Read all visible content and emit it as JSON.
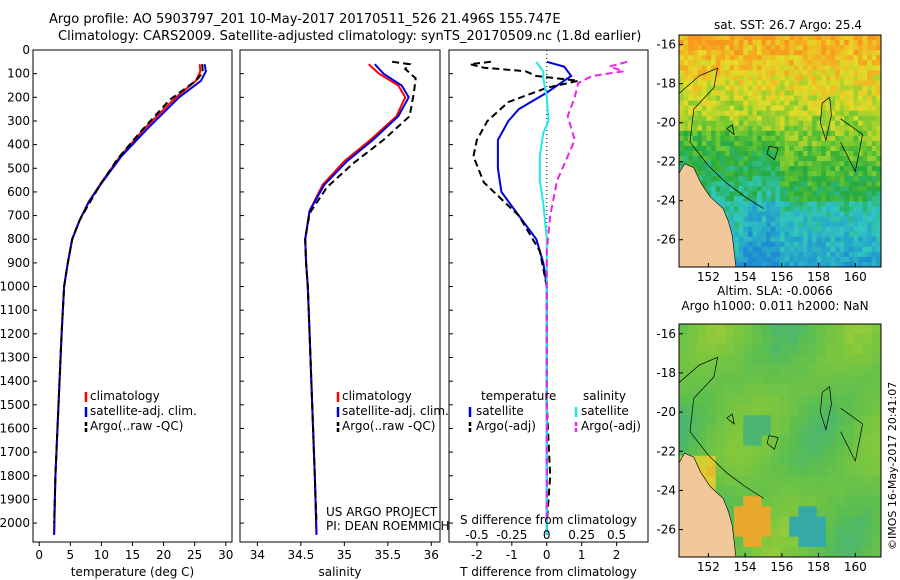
{
  "header": {
    "line1": "Argo profile: AO 5903797_201 10-May-2017 20170511_526 21.496S 155.747E",
    "line2": "Climatology: CARS2009. Satellite-adjusted climatology: synTS_20170509.nc (1.8d earlier)"
  },
  "timestamp": "©IMOS 16-May-2017 20:41:07",
  "colors": {
    "climatology": "#ff0000",
    "satellite": "#0000dd",
    "argo": "#000000",
    "sal_satellite": "#22e8e8",
    "sal_argo": "#ee22ee",
    "land": "#f2c79a"
  },
  "chart_data": [
    {
      "type": "line",
      "name": "temperature",
      "xlabel": "temperature (deg C)",
      "xlim": [
        -1,
        31
      ],
      "xticks": [
        0,
        5,
        10,
        15,
        20,
        25,
        30
      ],
      "ylim": [
        2080,
        0
      ],
      "yticks": [
        0,
        100,
        200,
        300,
        400,
        500,
        600,
        700,
        800,
        900,
        1000,
        1100,
        1200,
        1300,
        1400,
        1500,
        1600,
        1700,
        1800,
        1900,
        2000
      ],
      "legend": [
        "climatology",
        "satellite-adj. clim.",
        "Argo(..raw -QC)"
      ],
      "series": [
        {
          "name": "climatology",
          "color": "#ff0000",
          "dash": "",
          "points": [
            [
              25.8,
              60
            ],
            [
              25.9,
              90
            ],
            [
              25.2,
              130
            ],
            [
              22,
              200
            ],
            [
              17,
              330
            ],
            [
              13,
              450
            ],
            [
              10,
              560
            ],
            [
              8,
              640
            ],
            [
              6.5,
              720
            ],
            [
              5.3,
              800
            ],
            [
              4.6,
              900
            ],
            [
              4,
              1000
            ],
            [
              3.6,
              1200
            ],
            [
              3.1,
              1500
            ],
            [
              2.6,
              1800
            ],
            [
              2.4,
              2050
            ]
          ]
        },
        {
          "name": "satellite-adj. clim.",
          "color": "#0000dd",
          "dash": "",
          "points": [
            [
              26.6,
              60
            ],
            [
              26.8,
              90
            ],
            [
              26,
              130
            ],
            [
              22.5,
              200
            ],
            [
              17.5,
              330
            ],
            [
              13.2,
              450
            ],
            [
              10.1,
              560
            ],
            [
              8,
              640
            ],
            [
              6.5,
              720
            ],
            [
              5.3,
              800
            ],
            [
              4.6,
              900
            ],
            [
              4,
              1000
            ],
            [
              3.6,
              1200
            ],
            [
              3.1,
              1500
            ],
            [
              2.6,
              1800
            ],
            [
              2.4,
              2050
            ]
          ]
        },
        {
          "name": "Argo(..raw -QC)",
          "color": "#000000",
          "dash": "7,4",
          "points": [
            [
              26.2,
              60
            ],
            [
              26.3,
              95
            ],
            [
              25.2,
              130
            ],
            [
              21,
              210
            ],
            [
              16.5,
              340
            ],
            [
              12.6,
              460
            ],
            [
              9.8,
              570
            ],
            [
              8,
              650
            ],
            [
              6.5,
              720
            ],
            [
              5.3,
              800
            ],
            [
              4.6,
              900
            ],
            [
              4,
              1000
            ],
            [
              3.6,
              1200
            ],
            [
              3.1,
              1500
            ],
            [
              2.6,
              1800
            ],
            [
              2.4,
              2000
            ]
          ]
        }
      ]
    },
    {
      "type": "line",
      "name": "salinity",
      "xlabel": "salinity",
      "xlim": [
        33.8,
        36.1
      ],
      "xticks": [
        34,
        34.5,
        35,
        35.5,
        36
      ],
      "ylim": [
        2080,
        0
      ],
      "legend": [
        "climatology",
        "satellite-adj. clim.",
        "Argo(..raw -QC)"
      ],
      "annotation": [
        "US ARGO PROJECT",
        "PI: DEAN ROEMMICH"
      ],
      "series": [
        {
          "name": "climatology",
          "color": "#ff0000",
          "dash": "",
          "points": [
            [
              35.28,
              60
            ],
            [
              35.4,
              100
            ],
            [
              35.62,
              150
            ],
            [
              35.7,
              200
            ],
            [
              35.6,
              280
            ],
            [
              35.3,
              380
            ],
            [
              35,
              470
            ],
            [
              34.75,
              570
            ],
            [
              34.6,
              680
            ],
            [
              34.55,
              800
            ],
            [
              34.56,
              900
            ],
            [
              34.58,
              1000
            ],
            [
              34.6,
              1200
            ],
            [
              34.63,
              1500
            ],
            [
              34.66,
              1800
            ],
            [
              34.68,
              2050
            ]
          ]
        },
        {
          "name": "satellite-adj. clim.",
          "color": "#0000dd",
          "dash": "",
          "points": [
            [
              35.35,
              60
            ],
            [
              35.45,
              100
            ],
            [
              35.66,
              150
            ],
            [
              35.74,
              200
            ],
            [
              35.62,
              280
            ],
            [
              35.33,
              380
            ],
            [
              35.03,
              470
            ],
            [
              34.77,
              570
            ],
            [
              34.6,
              680
            ],
            [
              34.55,
              800
            ],
            [
              34.56,
              900
            ],
            [
              34.58,
              1000
            ],
            [
              34.6,
              1200
            ],
            [
              34.63,
              1500
            ],
            [
              34.66,
              1800
            ],
            [
              34.68,
              2050
            ]
          ]
        },
        {
          "name": "Argo(..raw -QC)",
          "color": "#000000",
          "dash": "7,4",
          "points": [
            [
              35.55,
              50
            ],
            [
              35.75,
              60
            ],
            [
              35.7,
              80
            ],
            [
              35.82,
              120
            ],
            [
              35.8,
              180
            ],
            [
              35.75,
              280
            ],
            [
              35.45,
              380
            ],
            [
              35.1,
              480
            ],
            [
              34.8,
              580
            ],
            [
              34.6,
              690
            ],
            [
              34.55,
              800
            ],
            [
              34.56,
              900
            ],
            [
              34.58,
              1000
            ],
            [
              34.6,
              1200
            ],
            [
              34.63,
              1500
            ],
            [
              34.66,
              1800
            ],
            [
              34.68,
              2000
            ]
          ]
        }
      ]
    },
    {
      "type": "line",
      "name": "differences",
      "xlabel": "T difference from climatology",
      "xlabel2": "S difference from climatology",
      "xlim": [
        -2.8,
        2.9
      ],
      "xticks": [
        -2,
        -1,
        0,
        1,
        2
      ],
      "sticks": [
        [
          "-0.5",
          -2
        ],
        [
          "-0.25",
          -1
        ],
        [
          "0",
          0
        ],
        [
          "0.25",
          1
        ],
        [
          "0.5",
          2
        ]
      ],
      "ylim": [
        2080,
        0
      ],
      "legend_t": [
        "temperature",
        "satellite",
        "Argo(-adj)"
      ],
      "legend_s": [
        "salinity",
        "satellite",
        "Argo(-adj)"
      ],
      "series": [
        {
          "name": "T satellite",
          "color": "#0000dd",
          "dash": "",
          "points": [
            [
              0,
              50
            ],
            [
              0.5,
              70
            ],
            [
              0.6,
              90
            ],
            [
              0.7,
              110
            ],
            [
              0.4,
              140
            ],
            [
              0,
              180
            ],
            [
              -0.8,
              250
            ],
            [
              -1.1,
              300
            ],
            [
              -1.4,
              380
            ],
            [
              -1.4,
              500
            ],
            [
              -1.3,
              600
            ],
            [
              -0.8,
              700
            ],
            [
              -0.3,
              800
            ],
            [
              -0.1,
              900
            ],
            [
              0,
              1000
            ],
            [
              0,
              2050
            ]
          ]
        },
        {
          "name": "T Argo(-adj)",
          "color": "#000000",
          "dash": "7,4",
          "points": [
            [
              -1.6,
              50
            ],
            [
              -2.2,
              60
            ],
            [
              -1.8,
              75
            ],
            [
              -0.6,
              90
            ],
            [
              -0.3,
              110
            ],
            [
              0.9,
              130
            ],
            [
              0,
              160
            ],
            [
              -1.1,
              220
            ],
            [
              -1.7,
              300
            ],
            [
              -2,
              380
            ],
            [
              -2.1,
              450
            ],
            [
              -1.8,
              560
            ],
            [
              -0.8,
              700
            ],
            [
              -0.2,
              850
            ],
            [
              0,
              1000
            ],
            [
              0,
              1200
            ],
            [
              0,
              1500
            ],
            [
              0.1,
              1800
            ],
            [
              0,
              2000
            ]
          ]
        },
        {
          "name": "S satellite",
          "color": "#22e8e8",
          "dash": "",
          "points": [
            [
              -0.3,
              50
            ],
            [
              -0.2,
              70
            ],
            [
              -0.1,
              90
            ],
            [
              -0.1,
              120
            ],
            [
              0,
              200
            ],
            [
              0.05,
              300
            ],
            [
              -0.1,
              350
            ],
            [
              -0.2,
              450
            ],
            [
              -0.2,
              550
            ],
            [
              -0.1,
              650
            ],
            [
              0,
              800
            ],
            [
              0,
              2050
            ]
          ]
        },
        {
          "name": "S Argo(-adj)",
          "color": "#ee22ee",
          "dash": "7,4",
          "points": [
            [
              2.3,
              50
            ],
            [
              1.8,
              70
            ],
            [
              2.2,
              90
            ],
            [
              1.3,
              110
            ],
            [
              0.9,
              140
            ],
            [
              0.8,
              200
            ],
            [
              0.6,
              280
            ],
            [
              0.7,
              330
            ],
            [
              0.8,
              380
            ],
            [
              0.6,
              450
            ],
            [
              0.3,
              550
            ],
            [
              0.1,
              700
            ],
            [
              0,
              850
            ],
            [
              0,
              2000
            ]
          ]
        }
      ]
    },
    {
      "type": "heatmap",
      "name": "satellite SST map",
      "title": "sat. SST: 26.7  Argo: 25.4",
      "xticks": [
        152,
        154,
        156,
        158,
        160
      ],
      "yticks": [
        -16,
        -18,
        -20,
        -22,
        -24,
        -26
      ],
      "xlim": [
        150.4,
        161.4
      ],
      "ylim": [
        -27.4,
        -15.5
      ]
    },
    {
      "type": "heatmap",
      "name": "altimetry SLA map",
      "title1": "Altim. SLA: -0.0066",
      "title2": "Argo h1000: 0.011  h2000: NaN",
      "xticks": [
        152,
        154,
        156,
        158,
        160
      ],
      "yticks": [
        -16,
        -18,
        -20,
        -22,
        -24,
        -26
      ],
      "xlim": [
        150.4,
        161.4
      ],
      "ylim": [
        -27.4,
        -15.5
      ]
    }
  ]
}
